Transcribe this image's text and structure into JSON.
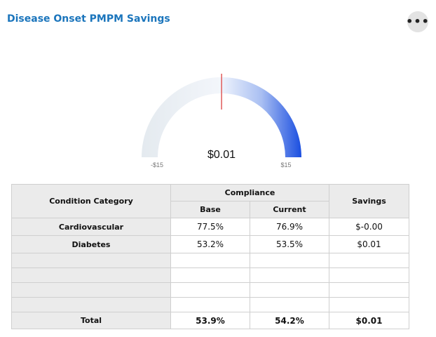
{
  "header": {
    "title": "Disease Onset PMPM Savings",
    "menu_label": "•••"
  },
  "gauge": {
    "value": 0.01,
    "value_label": "$0.01",
    "min": -15,
    "max": 15,
    "min_label": "-$15",
    "max_label": "$15",
    "colors": {
      "track": "#e4eaef",
      "fill_start": "#eef3fc",
      "fill_end": "#1a4ee0",
      "needle": "#e05a5a"
    }
  },
  "table": {
    "headers": {
      "category": "Condition Category",
      "compliance": "Compliance",
      "base": "Base",
      "current": "Current",
      "savings": "Savings"
    },
    "rows": [
      {
        "category": "Cardiovascular",
        "base": "77.5%",
        "current": "76.9%",
        "savings": "$-0.00"
      },
      {
        "category": "Diabetes",
        "base": "53.2%",
        "current": "53.5%",
        "savings": "$0.01"
      }
    ],
    "total": {
      "category": "Total",
      "base": "53.9%",
      "current": "54.2%",
      "savings": "$0.01"
    }
  }
}
